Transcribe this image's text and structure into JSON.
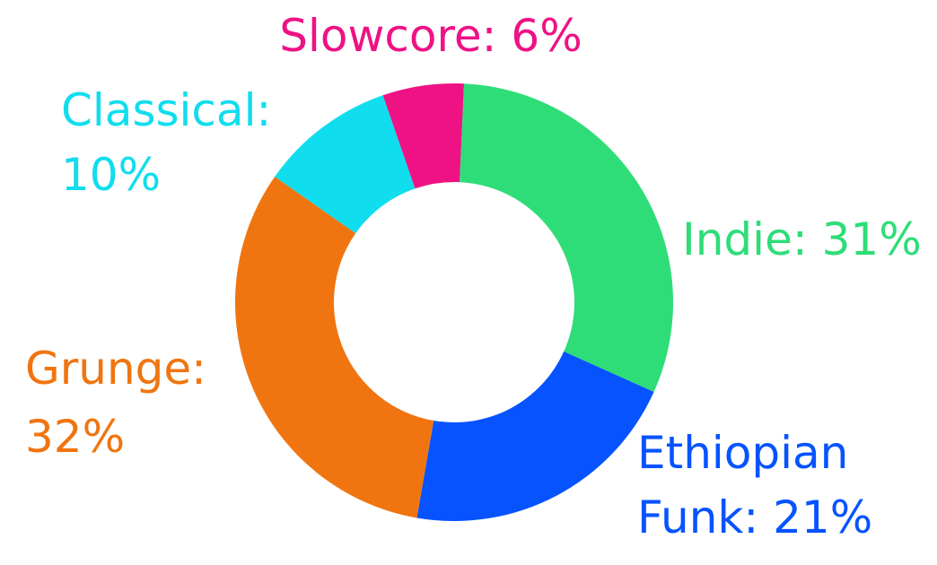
{
  "chart_data": {
    "type": "pie",
    "donut": true,
    "categories": [
      "Slowcore",
      "Indie",
      "Ethiopian Funk",
      "Grunge",
      "Classical"
    ],
    "values": [
      6,
      31,
      21,
      32,
      10
    ],
    "labels": {
      "slowcore": "Slowcore: 6%",
      "indie": "Indie: 31%",
      "ethiopian_funk_line1": "Ethiopian",
      "ethiopian_funk_line2": "Funk: 21%",
      "grunge_line1": "Grunge:",
      "grunge_line2": "32%",
      "classical_line1": "Classical:",
      "classical_line2": "10%"
    },
    "colors": {
      "slowcore": "#EE1285",
      "indie": "#2EDD78",
      "ethiopian_funk": "#0653FF",
      "grunge": "#F07510",
      "classical": "#10DDEE"
    },
    "legend": "none",
    "grid": false
  }
}
